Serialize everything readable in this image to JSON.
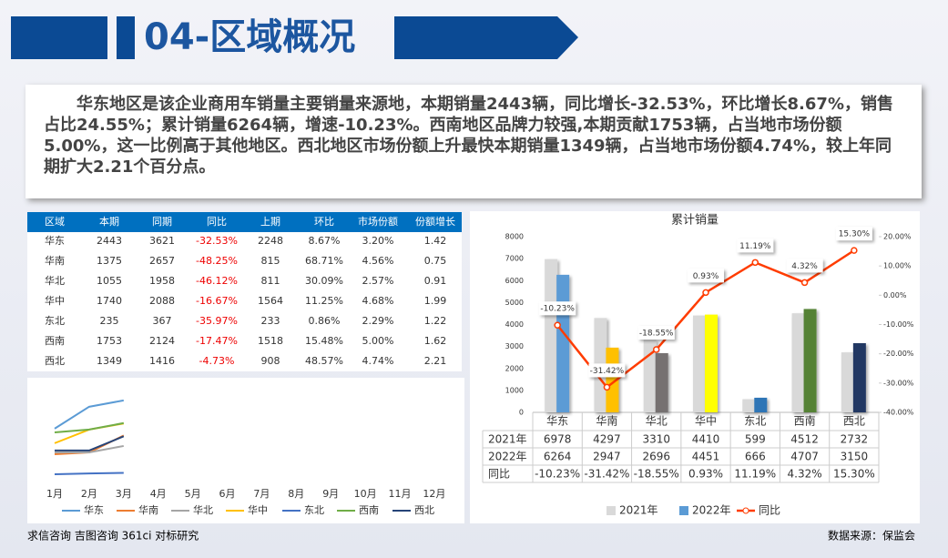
{
  "header": {
    "title": "04-区域概况"
  },
  "summary": "华东地区是该企业商用车销量主要销量来源地，本期销量2443辆，同比增长-32.53%，环比增长8.67%，销售占比24.55%；累计销量6264辆，增速-10.23%。西南地区品牌力较强,本期贡献1753辆，占当地市场份额5.00%，这一比例高于其他地区。西北地区市场份额上升最快本期销量1349辆，占当地市场份额4.74%，较上年同期扩大2.21个百分点。",
  "table": {
    "columns": [
      "区域",
      "本期",
      "同期",
      "同比",
      "上期",
      "环比",
      "市场份额",
      "份额增长"
    ],
    "rows": [
      [
        "华东",
        "2443",
        "3621",
        "-32.53%",
        "2248",
        "8.67%",
        "3.20%",
        "1.42"
      ],
      [
        "华南",
        "1375",
        "2657",
        "-48.25%",
        "815",
        "68.71%",
        "4.56%",
        "0.75"
      ],
      [
        "华北",
        "1055",
        "1958",
        "-46.12%",
        "811",
        "30.09%",
        "2.57%",
        "0.91"
      ],
      [
        "华中",
        "1740",
        "2088",
        "-16.67%",
        "1564",
        "11.25%",
        "4.68%",
        "1.99"
      ],
      [
        "东北",
        "235",
        "367",
        "-35.97%",
        "233",
        "0.86%",
        "2.29%",
        "1.22"
      ],
      [
        "西南",
        "1753",
        "2124",
        "-17.47%",
        "1518",
        "15.48%",
        "5.00%",
        "1.62"
      ],
      [
        "西北",
        "1349",
        "1416",
        "-4.73%",
        "908",
        "48.57%",
        "4.74%",
        "2.21"
      ]
    ]
  },
  "chart_data": [
    {
      "type": "line",
      "categories": [
        "1月",
        "2月",
        "3月",
        "4月",
        "5月",
        "6月",
        "7月",
        "8月",
        "9月",
        "10月",
        "11月",
        "12月"
      ],
      "ylim": [
        0,
        2800
      ],
      "series": [
        {
          "name": "华东",
          "color": "#5b9bd5",
          "values": [
            1583,
            2250,
            2443,
            null,
            null,
            null,
            null,
            null,
            null,
            null,
            null,
            null
          ]
        },
        {
          "name": "华南",
          "color": "#ed7d31",
          "values": [
            805,
            860,
            1375,
            null,
            null,
            null,
            null,
            null,
            null,
            null,
            null,
            null
          ]
        },
        {
          "name": "华北",
          "color": "#a5a5a5",
          "values": [
            860,
            860,
            1055,
            null,
            null,
            null,
            null,
            null,
            null,
            null,
            null,
            null
          ]
        },
        {
          "name": "华中",
          "color": "#ffc000",
          "values": [
            1140,
            1555,
            1740,
            null,
            null,
            null,
            null,
            null,
            null,
            null,
            null,
            null
          ]
        },
        {
          "name": "东北",
          "color": "#4472c4",
          "values": [
            195,
            220,
            235,
            null,
            null,
            null,
            null,
            null,
            null,
            null,
            null,
            null
          ]
        },
        {
          "name": "西南",
          "color": "#70ad47",
          "values": [
            1470,
            1555,
            1753,
            null,
            null,
            null,
            null,
            null,
            null,
            null,
            null,
            null
          ]
        },
        {
          "name": "西北",
          "color": "#264478",
          "values": [
            917,
            917,
            1349,
            null,
            null,
            null,
            null,
            null,
            null,
            null,
            null,
            null
          ]
        }
      ]
    },
    {
      "type": "combo",
      "title": "累计销量",
      "categories": [
        "华东",
        "华南",
        "华北",
        "华中",
        "东北",
        "西南",
        "西北"
      ],
      "ylim": [
        0,
        8000
      ],
      "yticks": [
        0,
        1000,
        2000,
        3000,
        4000,
        5000,
        6000,
        7000,
        8000
      ],
      "y2lim": [
        -40,
        20
      ],
      "y2ticks": [
        {
          "value": -40,
          "label": "-40.00%"
        },
        {
          "value": -30,
          "label": "-30.00%"
        },
        {
          "value": -20,
          "label": "-20.00%"
        },
        {
          "value": -10,
          "label": "-10.00%"
        },
        {
          "value": 0,
          "label": "0.00%"
        },
        {
          "value": 10,
          "label": "10.00%"
        },
        {
          "value": 20,
          "label": "20.00%"
        }
      ],
      "series": [
        {
          "name": "2021年",
          "type": "bar",
          "color": "#d9d9d9",
          "values": [
            6978,
            4297,
            3310,
            4410,
            599,
            4512,
            2732
          ]
        },
        {
          "name": "2022年",
          "type": "bar",
          "color": "#5b9bd5",
          "colors": [
            "#5b9bd5",
            "#ffc000",
            "#767171",
            "#ffff00",
            "#2e75b6",
            "#548235",
            "#203864"
          ],
          "values": [
            6264,
            2947,
            2696,
            4451,
            666,
            4707,
            3150
          ]
        },
        {
          "name": "同比",
          "type": "line",
          "axis": "y2",
          "color": "#ff3c00",
          "values": [
            -10.23,
            -31.42,
            -18.55,
            0.93,
            11.19,
            4.32,
            15.3
          ],
          "value_labels": [
            "-10.23%",
            "-31.42%",
            "-18.55%",
            "0.93%",
            "11.19%",
            "4.32%",
            "15.30%"
          ]
        }
      ]
    }
  ],
  "footer": {
    "left": "求信咨询 吉图咨询 361ci 对标研究",
    "right": "数据来源：保监会"
  }
}
